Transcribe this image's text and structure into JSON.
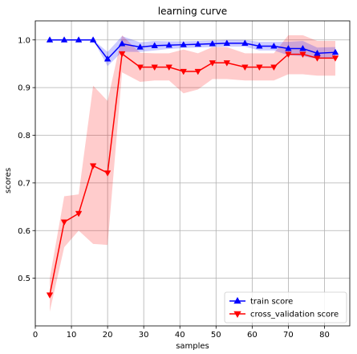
{
  "chart_data": {
    "type": "line",
    "title": "learning curve",
    "xlabel": "samples",
    "ylabel": "scores",
    "xlim": [
      0,
      87
    ],
    "ylim": [
      0.4,
      1.04
    ],
    "xticks": [
      0,
      10,
      20,
      30,
      40,
      50,
      60,
      70,
      80
    ],
    "yticks": [
      0.5,
      0.6,
      0.7,
      0.8,
      0.9,
      1.0
    ],
    "grid": true,
    "legend_position": "lower-right",
    "x": [
      4,
      8,
      12,
      16,
      20,
      24,
      29,
      33,
      37,
      41,
      45,
      49,
      53,
      58,
      62,
      66,
      70,
      74,
      78,
      83
    ],
    "series": [
      {
        "name": "train score",
        "color": "#0000ff",
        "marker": "triangle-up",
        "values": [
          1.0,
          1.0,
          1.0,
          1.0,
          0.96,
          0.992,
          0.985,
          0.988,
          0.989,
          0.99,
          0.991,
          0.992,
          0.993,
          0.993,
          0.987,
          0.987,
          0.982,
          0.982,
          0.972,
          0.974
        ],
        "band_lower": [
          1.0,
          1.0,
          1.0,
          1.0,
          0.945,
          0.975,
          0.975,
          0.978,
          0.981,
          0.983,
          0.984,
          0.985,
          0.986,
          0.986,
          0.978,
          0.978,
          0.968,
          0.966,
          0.96,
          0.963
        ],
        "band_upper": [
          1.0,
          1.0,
          1.0,
          1.0,
          0.975,
          1.008,
          0.995,
          0.998,
          0.997,
          0.997,
          0.998,
          0.999,
          1.0,
          1.0,
          0.996,
          0.996,
          0.996,
          0.998,
          0.984,
          0.985
        ]
      },
      {
        "name": "cross_validation score",
        "color": "#ff0000",
        "marker": "triangle-down",
        "values": [
          0.465,
          0.618,
          0.636,
          0.736,
          0.721,
          0.971,
          0.943,
          0.943,
          0.943,
          0.934,
          0.934,
          0.952,
          0.952,
          0.943,
          0.943,
          0.943,
          0.97,
          0.97,
          0.962,
          0.962
        ],
        "band_lower": [
          0.43,
          0.565,
          0.6,
          0.572,
          0.57,
          0.932,
          0.912,
          0.915,
          0.915,
          0.888,
          0.896,
          0.918,
          0.918,
          0.915,
          0.915,
          0.915,
          0.928,
          0.928,
          0.925,
          0.925
        ],
        "band_upper": [
          0.5,
          0.672,
          0.676,
          0.904,
          0.872,
          1.01,
          0.973,
          0.972,
          0.972,
          0.98,
          0.972,
          0.985,
          0.985,
          0.972,
          0.972,
          0.972,
          1.01,
          1.01,
          0.998,
          0.998
        ]
      }
    ]
  }
}
